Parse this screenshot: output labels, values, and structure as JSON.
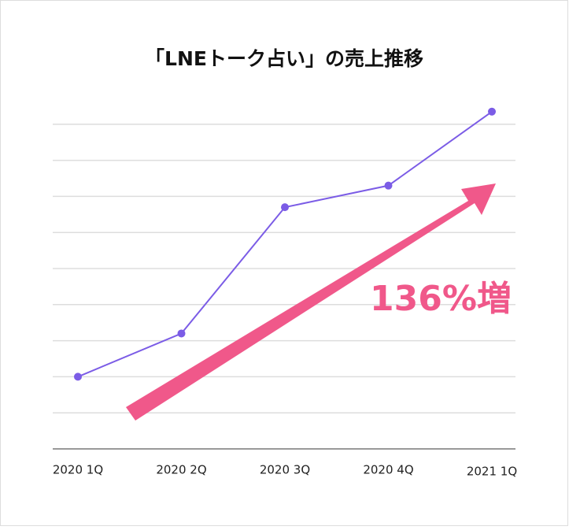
{
  "chart_data": {
    "type": "line",
    "title": "「LNEトーク占い」の売上推移",
    "categories": [
      "2020 1Q",
      "2020 2Q",
      "2020 3Q",
      "2020 4Q",
      "2021 1Q"
    ],
    "series": [
      {
        "name": "売上",
        "color": "#7b5ce6",
        "values": [
          2.0,
          3.2,
          6.7,
          7.3,
          9.35
        ]
      }
    ],
    "ylim": [
      0,
      10
    ],
    "yticks": [
      0,
      1,
      2,
      3,
      4,
      5,
      6,
      7,
      8,
      9
    ],
    "grid": true,
    "annotation": "136%増"
  }
}
